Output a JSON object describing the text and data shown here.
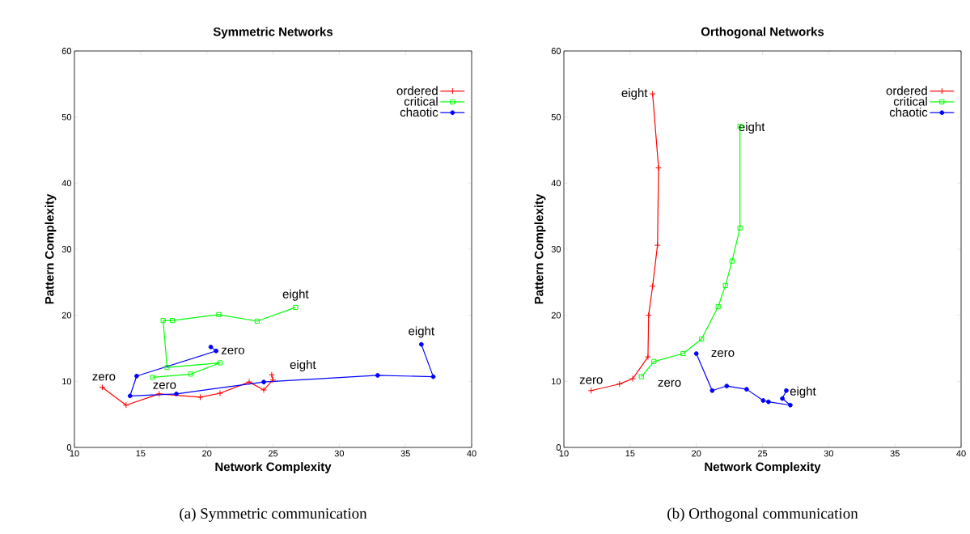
{
  "chart_data": [
    {
      "type": "line",
      "title": "Symmetric Networks",
      "xlabel": "Network Complexity",
      "ylabel": "Pattern Complexity",
      "xlim": [
        10,
        40
      ],
      "ylim": [
        0,
        60
      ],
      "xticks": [
        10,
        15,
        20,
        25,
        30,
        35,
        40
      ],
      "yticks": [
        0,
        10,
        20,
        30,
        40,
        50,
        60
      ],
      "legend": "top right",
      "series": [
        {
          "name": "ordered",
          "color": "#ff0000",
          "marker": "cross",
          "x": [
            12.1,
            13.9,
            16.4,
            19.5,
            21.0,
            23.2,
            24.3,
            25.0,
            24.9
          ],
          "values": [
            9.1,
            6.4,
            8.1,
            7.6,
            8.2,
            9.9,
            8.7,
            10.2,
            11.0
          ]
        },
        {
          "name": "critical",
          "color": "#00ff00",
          "marker": "square",
          "x": [
            15.9,
            18.8,
            21.0,
            17.0,
            16.7,
            17.4,
            20.9,
            23.8,
            26.7
          ],
          "values": [
            10.6,
            11.1,
            12.8,
            12.1,
            19.2,
            19.2,
            20.1,
            19.1,
            21.2
          ]
        },
        {
          "name": "chaotic",
          "color": "#0000ff",
          "marker": "circle",
          "x": [
            20.3,
            20.7,
            14.7,
            14.2,
            17.7,
            24.3,
            32.9,
            37.1,
            36.2
          ],
          "values": [
            15.2,
            14.6,
            10.8,
            7.8,
            8.1,
            9.9,
            10.9,
            10.7,
            15.6
          ]
        }
      ],
      "annotations": [
        {
          "text": "zero",
          "x": 12.1,
          "y": 9.1
        },
        {
          "text": "eight",
          "x": 26.7,
          "y": 21.2
        },
        {
          "text": "zero",
          "x": 20.7,
          "y": 14.6
        },
        {
          "text": "zero",
          "x": 15.9,
          "y": 10.6
        },
        {
          "text": "eight",
          "x": 24.9,
          "y": 11.0
        },
        {
          "text": "eight",
          "x": 36.2,
          "y": 15.6
        },
        "(a) Symmetric communication"
      ]
    },
    {
      "type": "line",
      "title": "Orthogonal Networks",
      "xlabel": "Network Complexity",
      "ylabel": "Pattern Complexity",
      "xlim": [
        10,
        40
      ],
      "ylim": [
        0,
        60
      ],
      "xticks": [
        10,
        15,
        20,
        25,
        30,
        35,
        40
      ],
      "yticks": [
        0,
        10,
        20,
        30,
        40,
        50,
        60
      ],
      "legend": "top right",
      "series": [
        {
          "name": "ordered",
          "color": "#ff0000",
          "marker": "cross",
          "x": [
            12.06,
            14.2,
            15.2,
            16.35,
            16.4,
            16.7,
            17.07,
            17.15,
            16.7
          ],
          "values": [
            8.6,
            9.6,
            10.4,
            13.7,
            20.0,
            24.4,
            30.6,
            42.3,
            53.5
          ]
        },
        {
          "name": "critical",
          "color": "#00ff00",
          "marker": "square",
          "x": [
            15.85,
            16.8,
            19.0,
            20.4,
            21.65,
            22.2,
            22.7,
            23.3,
            23.3
          ],
          "values": [
            10.7,
            13.0,
            14.2,
            16.4,
            21.3,
            24.5,
            28.2,
            33.2,
            48.6
          ]
        },
        {
          "name": "chaotic",
          "color": "#0000ff",
          "marker": "circle",
          "x": [
            20.0,
            21.2,
            22.3,
            23.8,
            25.05,
            25.45,
            27.1,
            26.5,
            26.8
          ],
          "values": [
            14.2,
            8.6,
            9.3,
            8.8,
            7.1,
            6.9,
            6.4,
            7.4,
            8.6
          ]
        }
      ],
      "annotations": [
        {
          "text": "eight",
          "x": 16.7,
          "y": 53.5
        },
        {
          "text": "eight",
          "x": 23.3,
          "y": 48.6
        },
        {
          "text": "zero",
          "x": 12.06,
          "y": 8.6
        },
        {
          "text": "zero",
          "x": 15.85,
          "y": 10.7
        },
        {
          "text": "zero",
          "x": 20.0,
          "y": 14.2
        },
        {
          "text": "eight",
          "x": 26.8,
          "y": 8.6
        },
        "(b) Orthogonal communication"
      ]
    }
  ]
}
